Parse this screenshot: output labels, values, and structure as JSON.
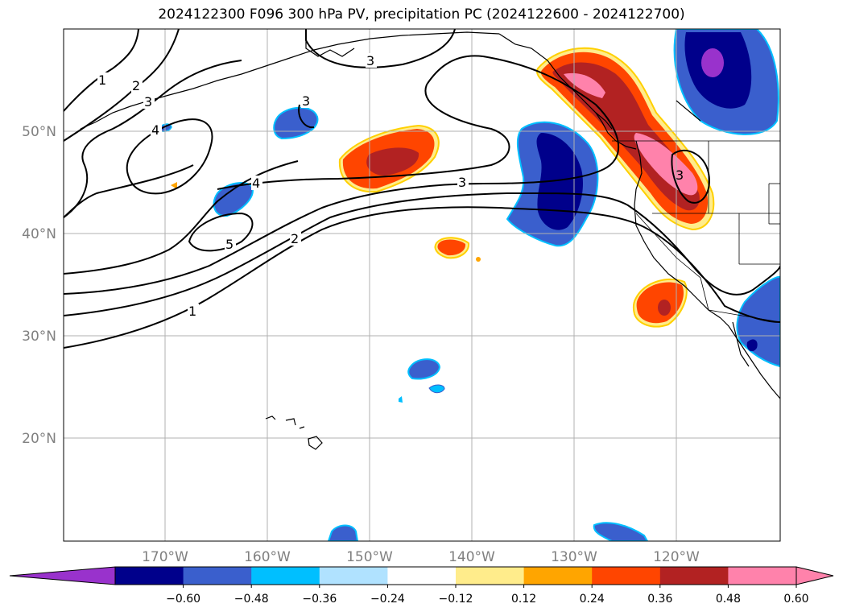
{
  "title": "2024122300 F096 300 hPa PV, precipitation PC (2024122600 - 2024122700)",
  "lat_labels": [
    "50°N",
    "40°N",
    "30°N",
    "20°N"
  ],
  "lon_labels": [
    "170°W",
    "160°W",
    "150°W",
    "140°W",
    "130°W",
    "120°W"
  ],
  "contour_labels": [
    "1",
    "2",
    "3",
    "4",
    "3",
    "3",
    "4",
    "5",
    "2",
    "1"
  ],
  "colorbar": {
    "ticks": [
      "−0.60",
      "−0.48",
      "−0.36",
      "−0.24",
      "−0.12",
      "0.12",
      "0.24",
      "0.36",
      "0.48",
      "0.60"
    ],
    "colors": {
      "under": "#9932cc",
      "bins": [
        "#00008b",
        "#3a5fcd",
        "#00bfff",
        "#b0e2ff",
        "#ffffff",
        "#ffec8b",
        "#ffa500",
        "#ff4500",
        "#b22222",
        "#ff82ab"
      ],
      "over": "#ff82ab"
    }
  }
}
